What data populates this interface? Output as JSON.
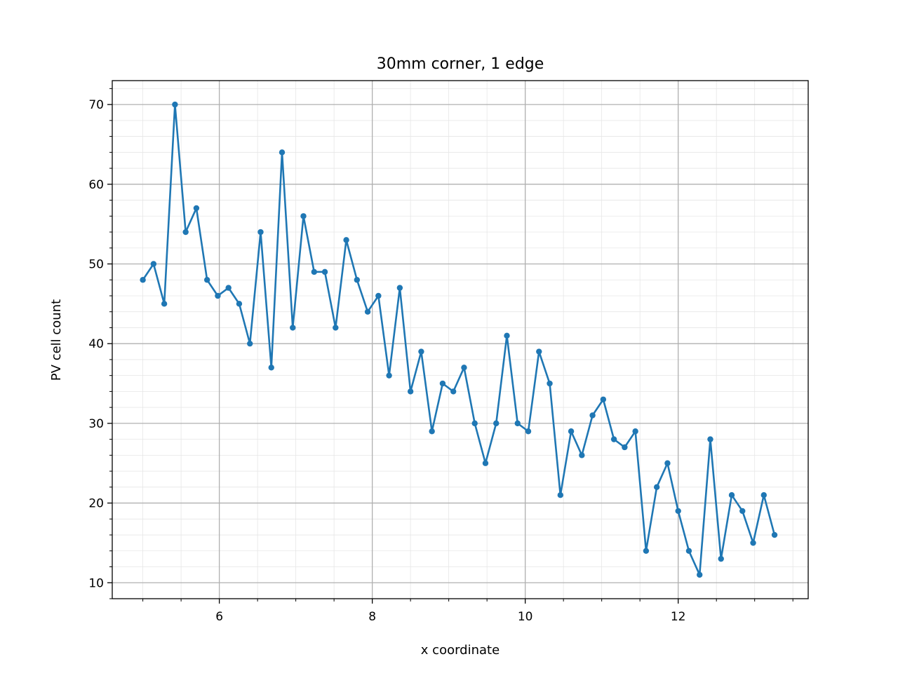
{
  "chart_data": {
    "type": "line",
    "title": "30mm corner, 1 edge",
    "xlabel": "x coordinate",
    "ylabel": "PV cell count",
    "xlim": [
      4.6,
      13.7
    ],
    "ylim": [
      8,
      73
    ],
    "xticks": [
      6,
      8,
      10,
      12
    ],
    "xtick_labels": [
      "6",
      "8",
      "10",
      "12"
    ],
    "yticks": [
      10,
      20,
      30,
      40,
      50,
      60,
      70
    ],
    "ytick_labels": [
      "10",
      "20",
      "30",
      "40",
      "50",
      "60",
      "70"
    ],
    "xminor_step": 0.5,
    "yminor_step": 2,
    "grid": true,
    "minor_grid": true,
    "legend": "none",
    "series": [
      {
        "color": "#1f77b4",
        "marker": "circle",
        "x": [
          5.0,
          5.14,
          5.28,
          5.42,
          5.56,
          5.7,
          5.84,
          5.98,
          6.12,
          6.26,
          6.4,
          6.54,
          6.68,
          6.82,
          6.96,
          7.1,
          7.24,
          7.38,
          7.52,
          7.66,
          7.8,
          7.94,
          8.08,
          8.22,
          8.36,
          8.5,
          8.64,
          8.78,
          8.92,
          9.06,
          9.2,
          9.34,
          9.48,
          9.62,
          9.76,
          9.9,
          10.04,
          10.18,
          10.32,
          10.46,
          10.6,
          10.74,
          10.88,
          11.02,
          11.16,
          11.3,
          11.44,
          11.58,
          11.72,
          11.86,
          12.0,
          12.14,
          12.28,
          12.42,
          12.56,
          12.7,
          12.84,
          12.98,
          13.12,
          13.26
        ],
        "y": [
          48,
          50,
          45,
          70,
          54,
          57,
          48,
          46,
          47,
          45,
          40,
          54,
          37,
          64,
          42,
          56,
          49,
          49,
          42,
          53,
          48,
          44,
          46,
          36,
          47,
          34,
          39,
          29,
          35,
          34,
          37,
          30,
          25,
          30,
          41,
          30,
          29,
          39,
          35,
          21,
          29,
          26,
          31,
          33,
          28,
          27,
          29,
          14,
          22,
          25,
          19,
          14,
          11,
          28,
          13,
          21,
          19,
          15,
          21,
          16
        ]
      }
    ]
  }
}
